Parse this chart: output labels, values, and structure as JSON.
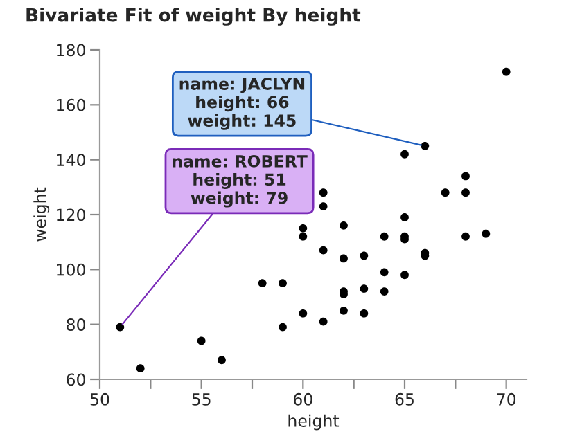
{
  "chart_data": {
    "type": "scatter",
    "title": "Bivariate Fit of weight By height",
    "xlabel": "height",
    "ylabel": "weight",
    "x": [
      51,
      52,
      55,
      56,
      58,
      59,
      59,
      60,
      60,
      60,
      61,
      61,
      61,
      61,
      62,
      62,
      62,
      62,
      62,
      63,
      63,
      63,
      64,
      64,
      64,
      65,
      65,
      65,
      65,
      65,
      66,
      66,
      66,
      67,
      68,
      68,
      68,
      69,
      70
    ],
    "series": [
      {
        "color": "#000000",
        "values": [
          79,
          64,
          74,
          67,
          95,
          95,
          79,
          115,
          112,
          84,
          128,
          123,
          107,
          81,
          116,
          104,
          92,
          91,
          85,
          105,
          93,
          84,
          112,
          99,
          92,
          142,
          119,
          112,
          111,
          98,
          145,
          106,
          105,
          128,
          134,
          128,
          112,
          113,
          172
        ]
      }
    ],
    "xlim": [
      50,
      71
    ],
    "ylim": [
      60,
      180
    ],
    "xticks": [
      50,
      {
        "value": 52.5,
        "label": null
      },
      55,
      {
        "value": 57.5,
        "label": null
      },
      60,
      {
        "value": 62.5,
        "label": null
      },
      65,
      {
        "value": 67.5,
        "label": null
      },
      70
    ],
    "yticks": [
      60,
      80,
      100,
      120,
      140,
      160,
      180
    ],
    "marker": "circle",
    "grid": false,
    "legend": false,
    "annotations": [
      {
        "text": "name: JACLYN\nheight: 66\nweight: 145",
        "x": 66,
        "y": 145
      },
      {
        "text": "name: ROBERT\nheight: 51\nweight: 79",
        "x": 51,
        "y": 79
      }
    ]
  }
}
